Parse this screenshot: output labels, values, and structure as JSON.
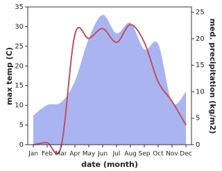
{
  "chart_data": {
    "type": "area-line",
    "x_label": "date (month)",
    "y_label": "max temp (C)",
    "y2_label": "med. precipitation (kg/m2)",
    "categories": [
      "Jan",
      "Feb",
      "Mar",
      "Apr",
      "May",
      "Jun",
      "Jul",
      "Aug",
      "Sep",
      "Oct",
      "Nov",
      "Dec"
    ],
    "ylim": [
      0,
      35
    ],
    "yticks": [
      0,
      5,
      10,
      15,
      20,
      25,
      30,
      35
    ],
    "y2lim": [
      0,
      26
    ],
    "y2ticks": [
      0,
      5,
      10,
      15,
      20,
      25
    ],
    "series": [
      {
        "name": "med. precipitation",
        "axis": "y2",
        "kind": "area",
        "color": "#aab4f0",
        "values": [
          5.5,
          7.5,
          8,
          12,
          20,
          24.5,
          21,
          23,
          18,
          19,
          8,
          10
        ]
      },
      {
        "name": "max temp",
        "kind": "line",
        "color": "#c05060",
        "values": [
          0,
          0.5,
          -0.5,
          28,
          27,
          29.5,
          26,
          30.5,
          26,
          16,
          11,
          5
        ]
      }
    ]
  }
}
